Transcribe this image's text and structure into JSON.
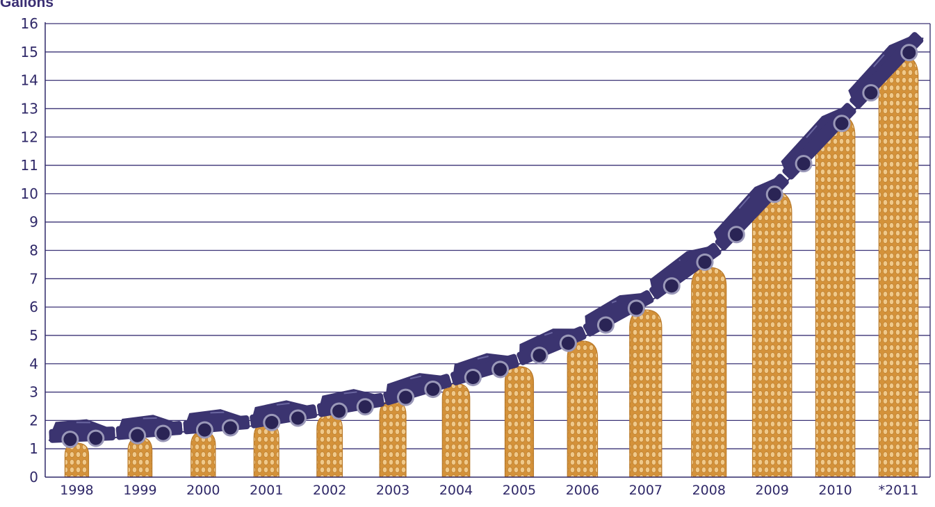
{
  "chart_data": {
    "type": "bar",
    "unit_label": "Gallons",
    "categories": [
      "1998",
      "1999",
      "2000",
      "2001",
      "2002",
      "2003",
      "2004",
      "2005",
      "2006",
      "2007",
      "2008",
      "2009",
      "2010",
      "*2011"
    ],
    "values": [
      1.2,
      1.4,
      1.6,
      1.9,
      2.2,
      2.7,
      3.3,
      3.9,
      4.8,
      5.9,
      7.4,
      10.1,
      12.8,
      14.9
    ],
    "trend_values": [
      1.3,
      1.4,
      1.6,
      1.8,
      2.2,
      2.6,
      3.3,
      4.0,
      5.0,
      6.3,
      8.0,
      10.5,
      13.0,
      15.5
    ],
    "ylim": [
      0,
      16
    ],
    "yticks": [
      0,
      1,
      2,
      3,
      4,
      5,
      6,
      7,
      8,
      9,
      10,
      11,
      12,
      13,
      14,
      15,
      16
    ],
    "grid": true,
    "colors": {
      "bar": "#d4923a",
      "bar_texture": "#f0c98a",
      "car": "#3b3470",
      "axis": "#2f2868",
      "grid": "#3a3275"
    },
    "bar_icon": "corn-cob-icon",
    "trend_icon": "station-wagon-icon"
  }
}
